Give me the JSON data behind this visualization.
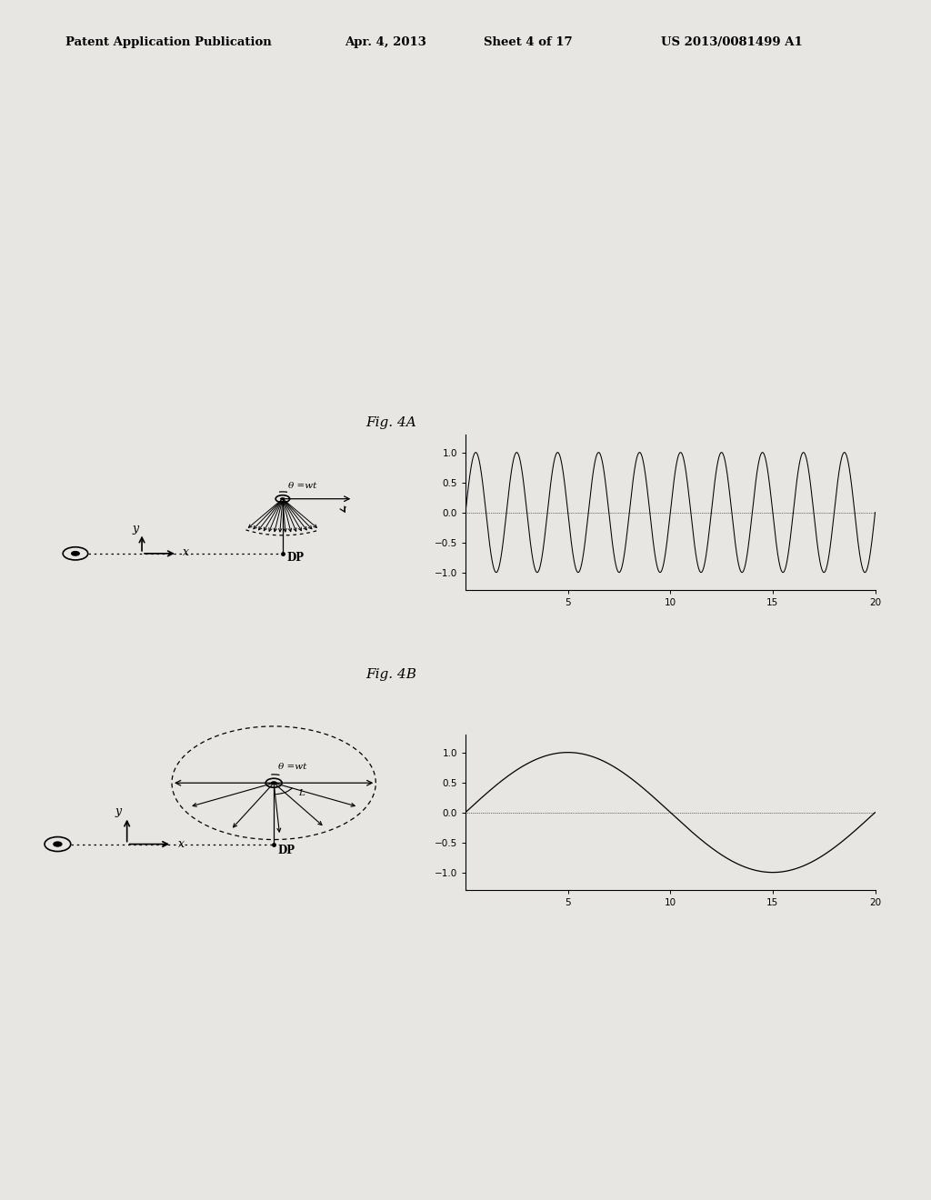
{
  "bg_color": "#e8e6e3",
  "header_text": "Patent Application Publication",
  "header_date": "Apr. 4, 2013",
  "header_sheet": "Sheet 4 of 17",
  "header_patent": "US 2013/0081499 A1",
  "fig4a_label": "Fig. 4A",
  "fig4b_label": "Fig. 4B",
  "fig4a_theta_label": "θ =wt",
  "fig4b_theta_label": "θ =wt",
  "dp_label": "DP",
  "y_label": "y",
  "x_label": "x",
  "sine_high_freq": 3.14159,
  "sine_low_freq": 0.31416,
  "plot_xlim": [
    0,
    20
  ],
  "plot_ylim": [
    -1.3,
    1.3
  ],
  "plot_xticks": [
    5,
    10,
    15,
    20
  ],
  "plot_yticks": [
    -1,
    -0.5,
    0,
    0.5,
    1
  ]
}
